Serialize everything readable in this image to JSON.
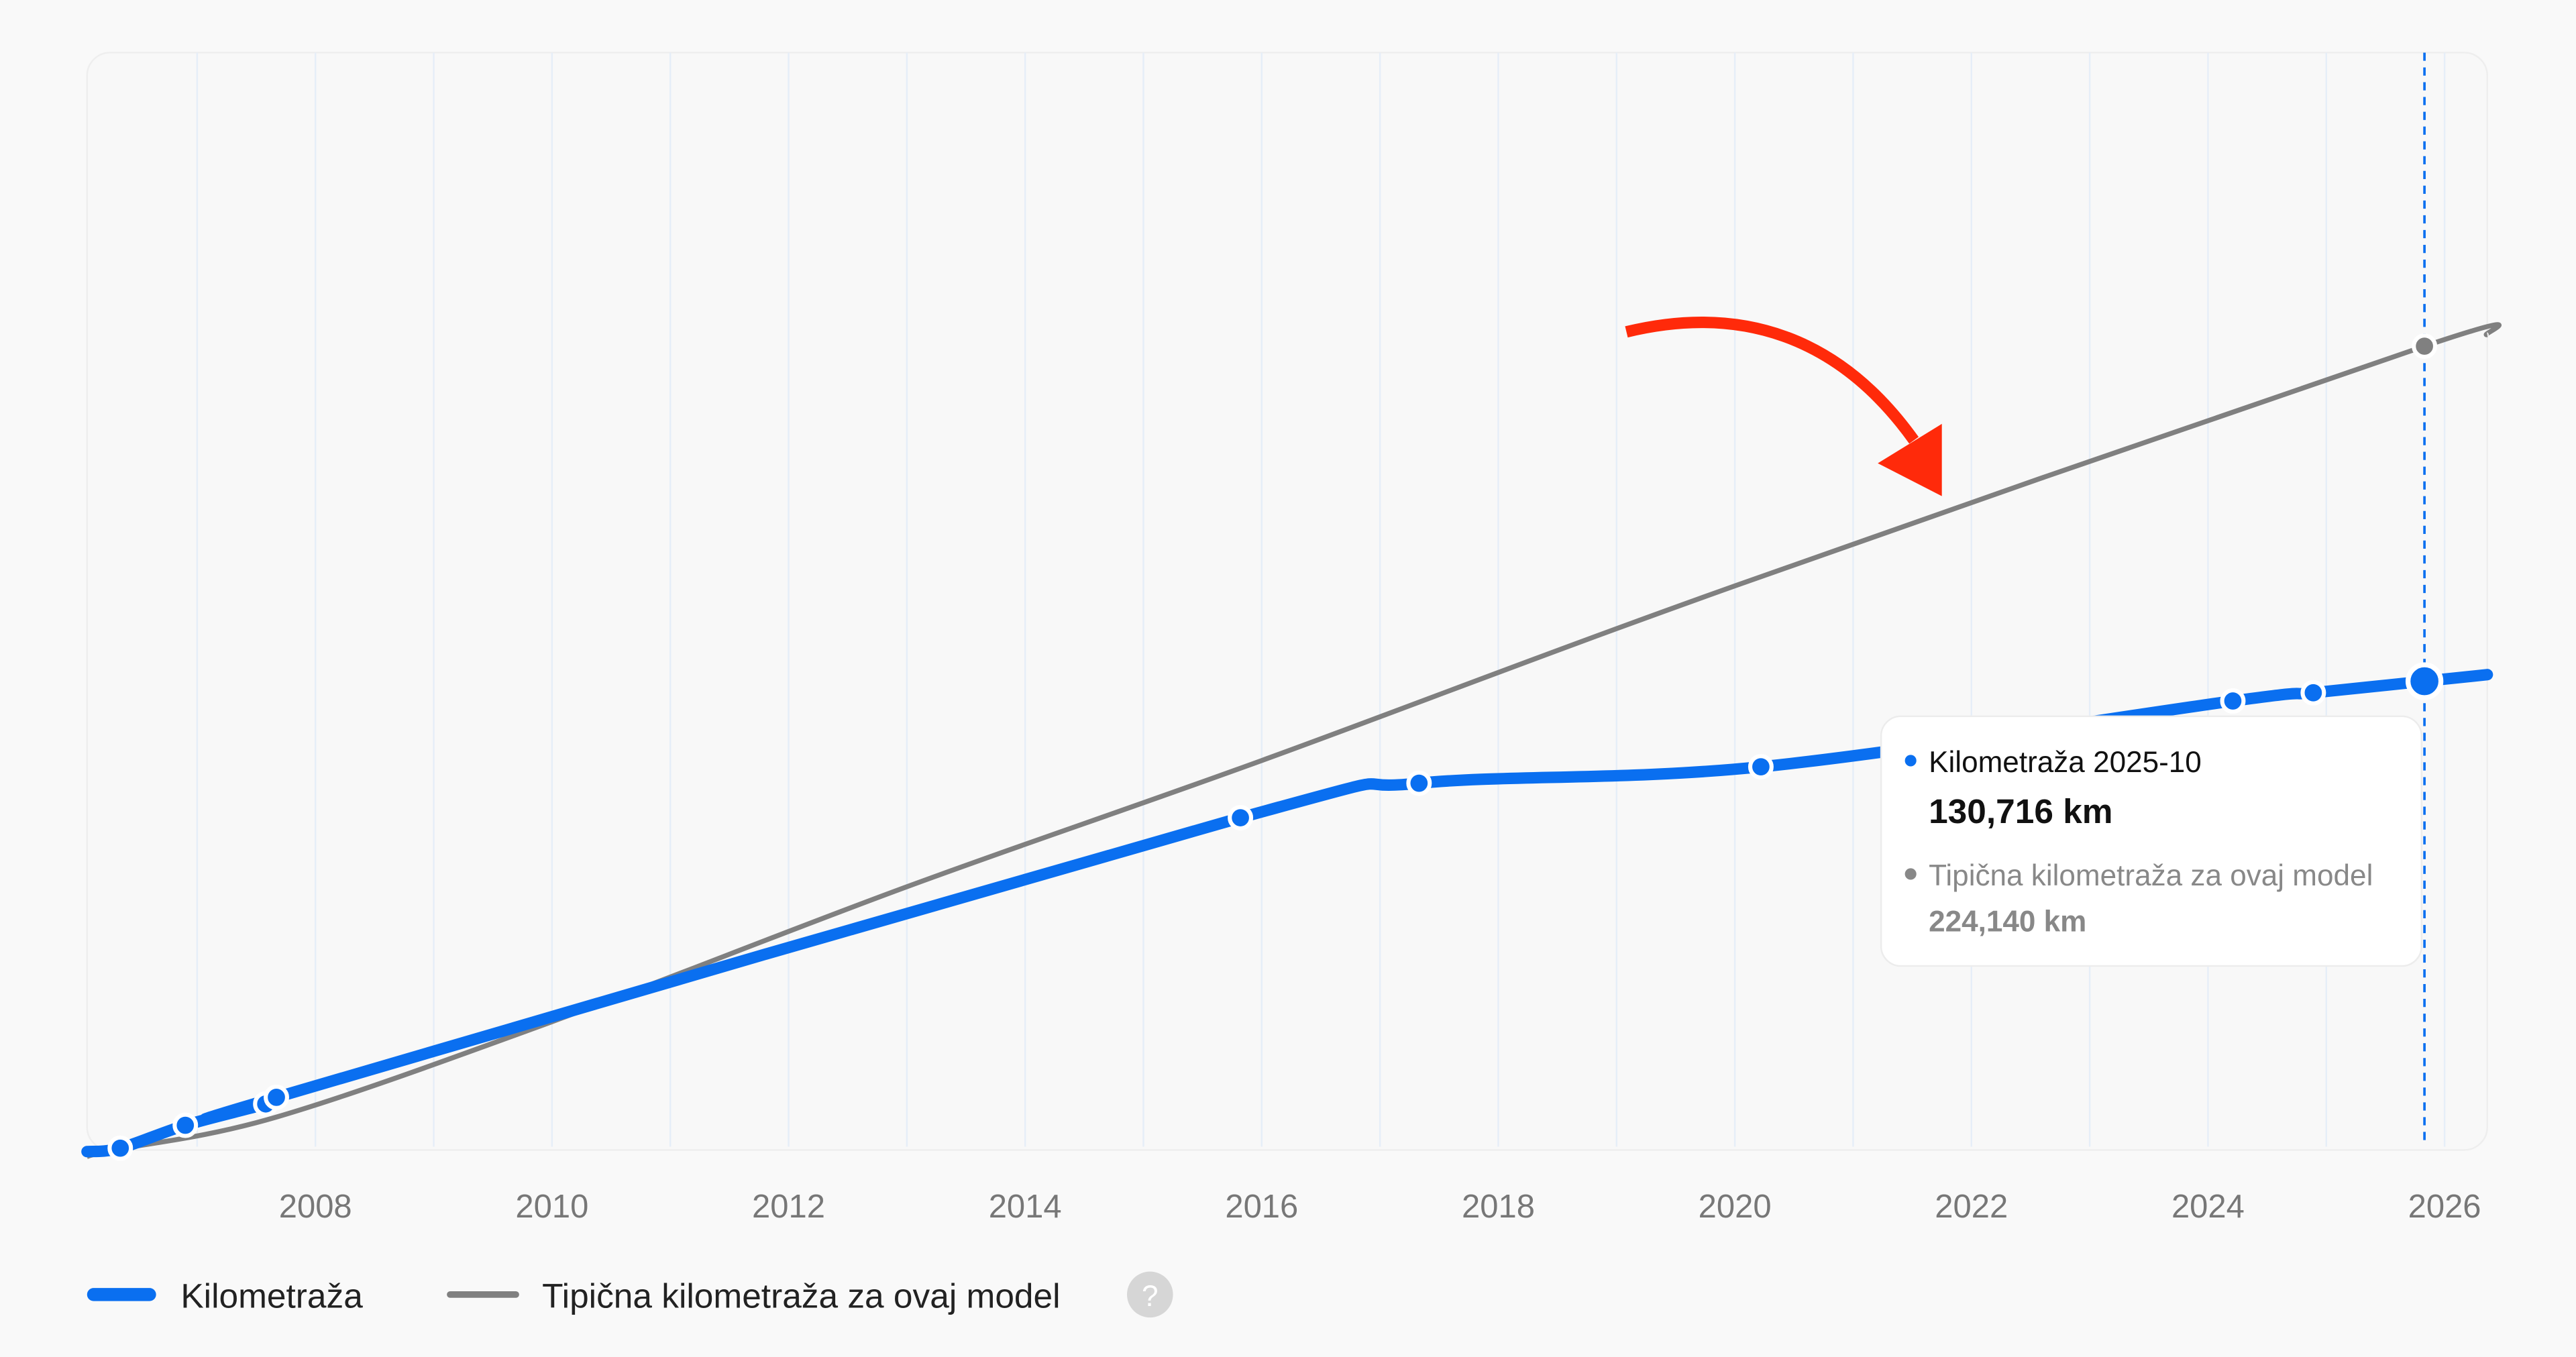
{
  "chart_data": {
    "type": "line",
    "title": "",
    "xlabel": "",
    "ylabel": "",
    "xlim": [
      2006.07,
      2026.36
    ],
    "ylim": [
      0,
      306000
    ],
    "grid": "vertical",
    "x_ticks": [
      2008,
      2010,
      2012,
      2014,
      2016,
      2018,
      2020,
      2022,
      2024,
      2026
    ],
    "series": [
      {
        "name": "Kilometraža",
        "color": "#0a6ff0",
        "x": [
          2006.35,
          2006.9,
          2007.58,
          2007.67,
          2015.82,
          2017.33,
          2020.22,
          2024.21,
          2024.89,
          2025.83
        ],
        "values": [
          500,
          6880,
          12840,
          14680,
          92640,
          102270,
          106850,
          125200,
          127490,
          130716
        ]
      },
      {
        "name": "Tipična kilometraža za ovaj model",
        "color": "#808080",
        "x": [
          2006.3,
          2007.67,
          2010,
          2013,
          2016,
          2020,
          2025.83
        ],
        "values": [
          0,
          9170,
          35770,
          73400,
          108600,
          157300,
          224140
        ]
      }
    ],
    "legend": {
      "placement": "bottom-left",
      "items": [
        "Kilometraža",
        "Tipična kilometraža za ovaj model"
      ],
      "help_icon": "?"
    },
    "tooltip": {
      "title": "Kilometraža 2025-10",
      "value": "130,716 km",
      "secondary_label": "Tipična kilometraža za ovaj model",
      "secondary_value": "224,140 km"
    },
    "annotation": "red-arrow-pointing-at-typical-line",
    "highlight_x": 2025.83
  }
}
